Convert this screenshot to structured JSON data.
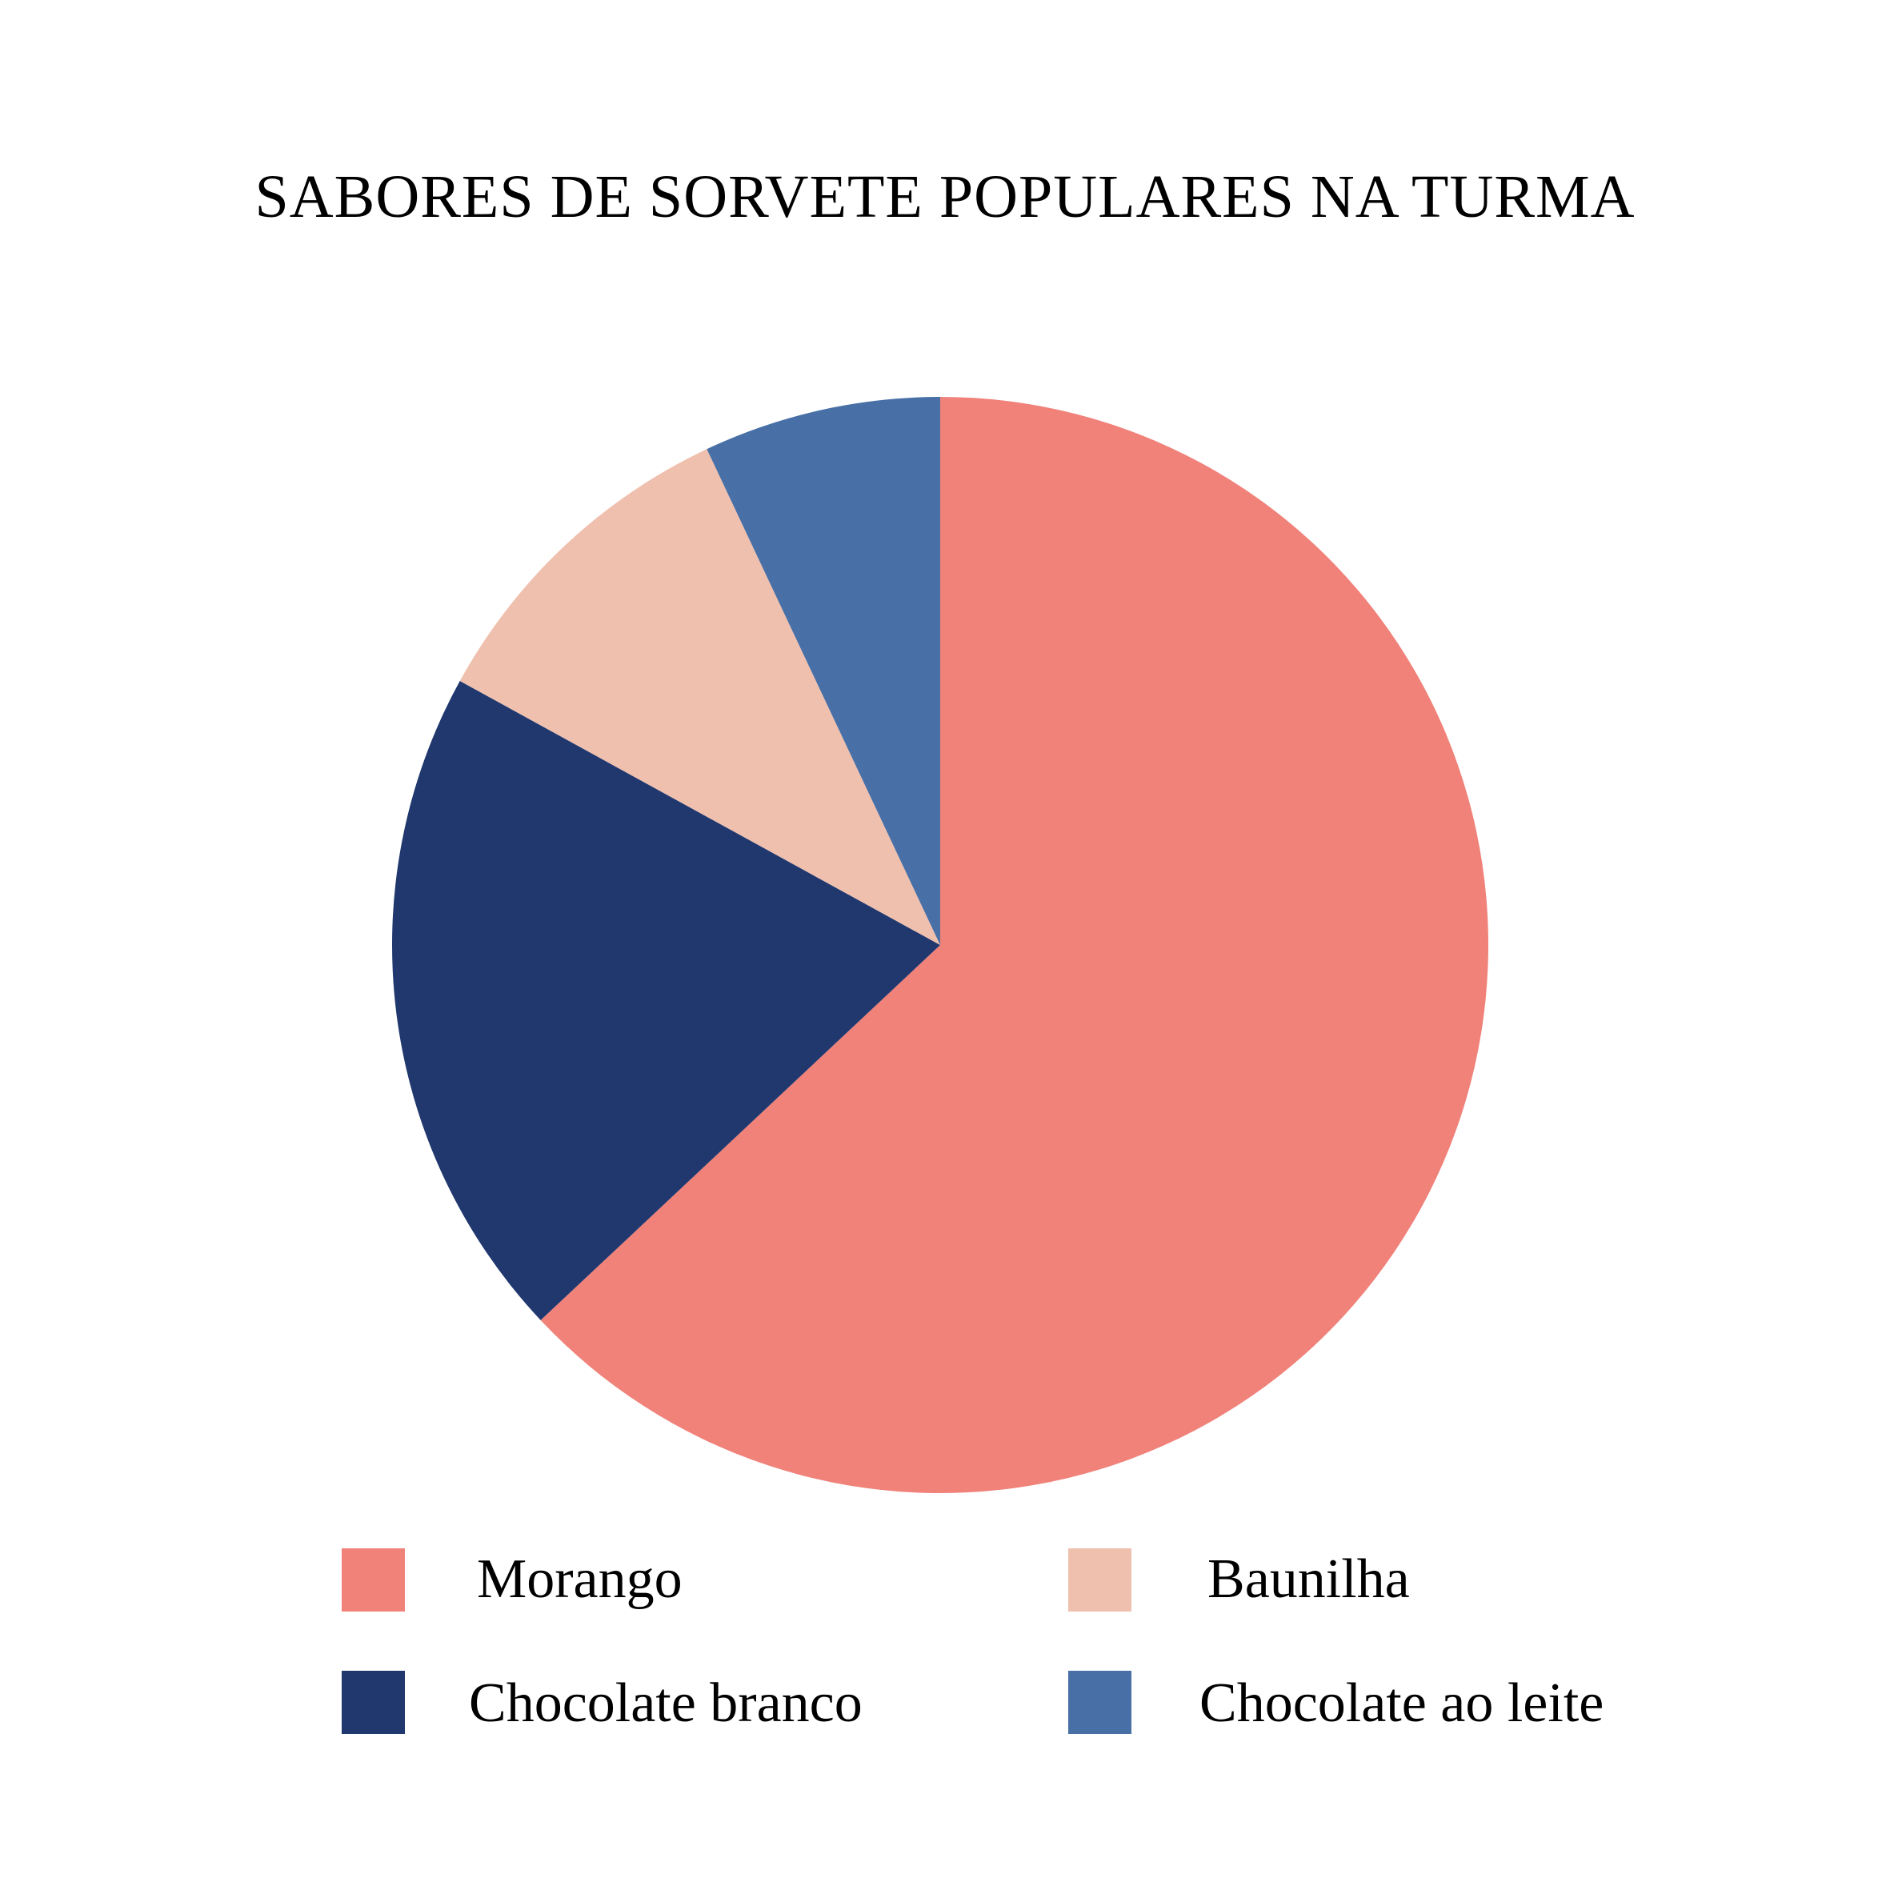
{
  "chart_data": {
    "type": "pie",
    "title": "SABORES DE SORVETE POPULARES NA TURMA",
    "categories": [
      "Morango",
      "Chocolate branco",
      "Baunilha",
      "Chocolate ao leite"
    ],
    "values": [
      63,
      20,
      10,
      7
    ],
    "colors": [
      "#f0827a",
      "#20386e",
      "#f0c0ae",
      "#4870a6"
    ],
    "start_angle": "top",
    "direction": "clockwise",
    "legend_position": "bottom"
  }
}
